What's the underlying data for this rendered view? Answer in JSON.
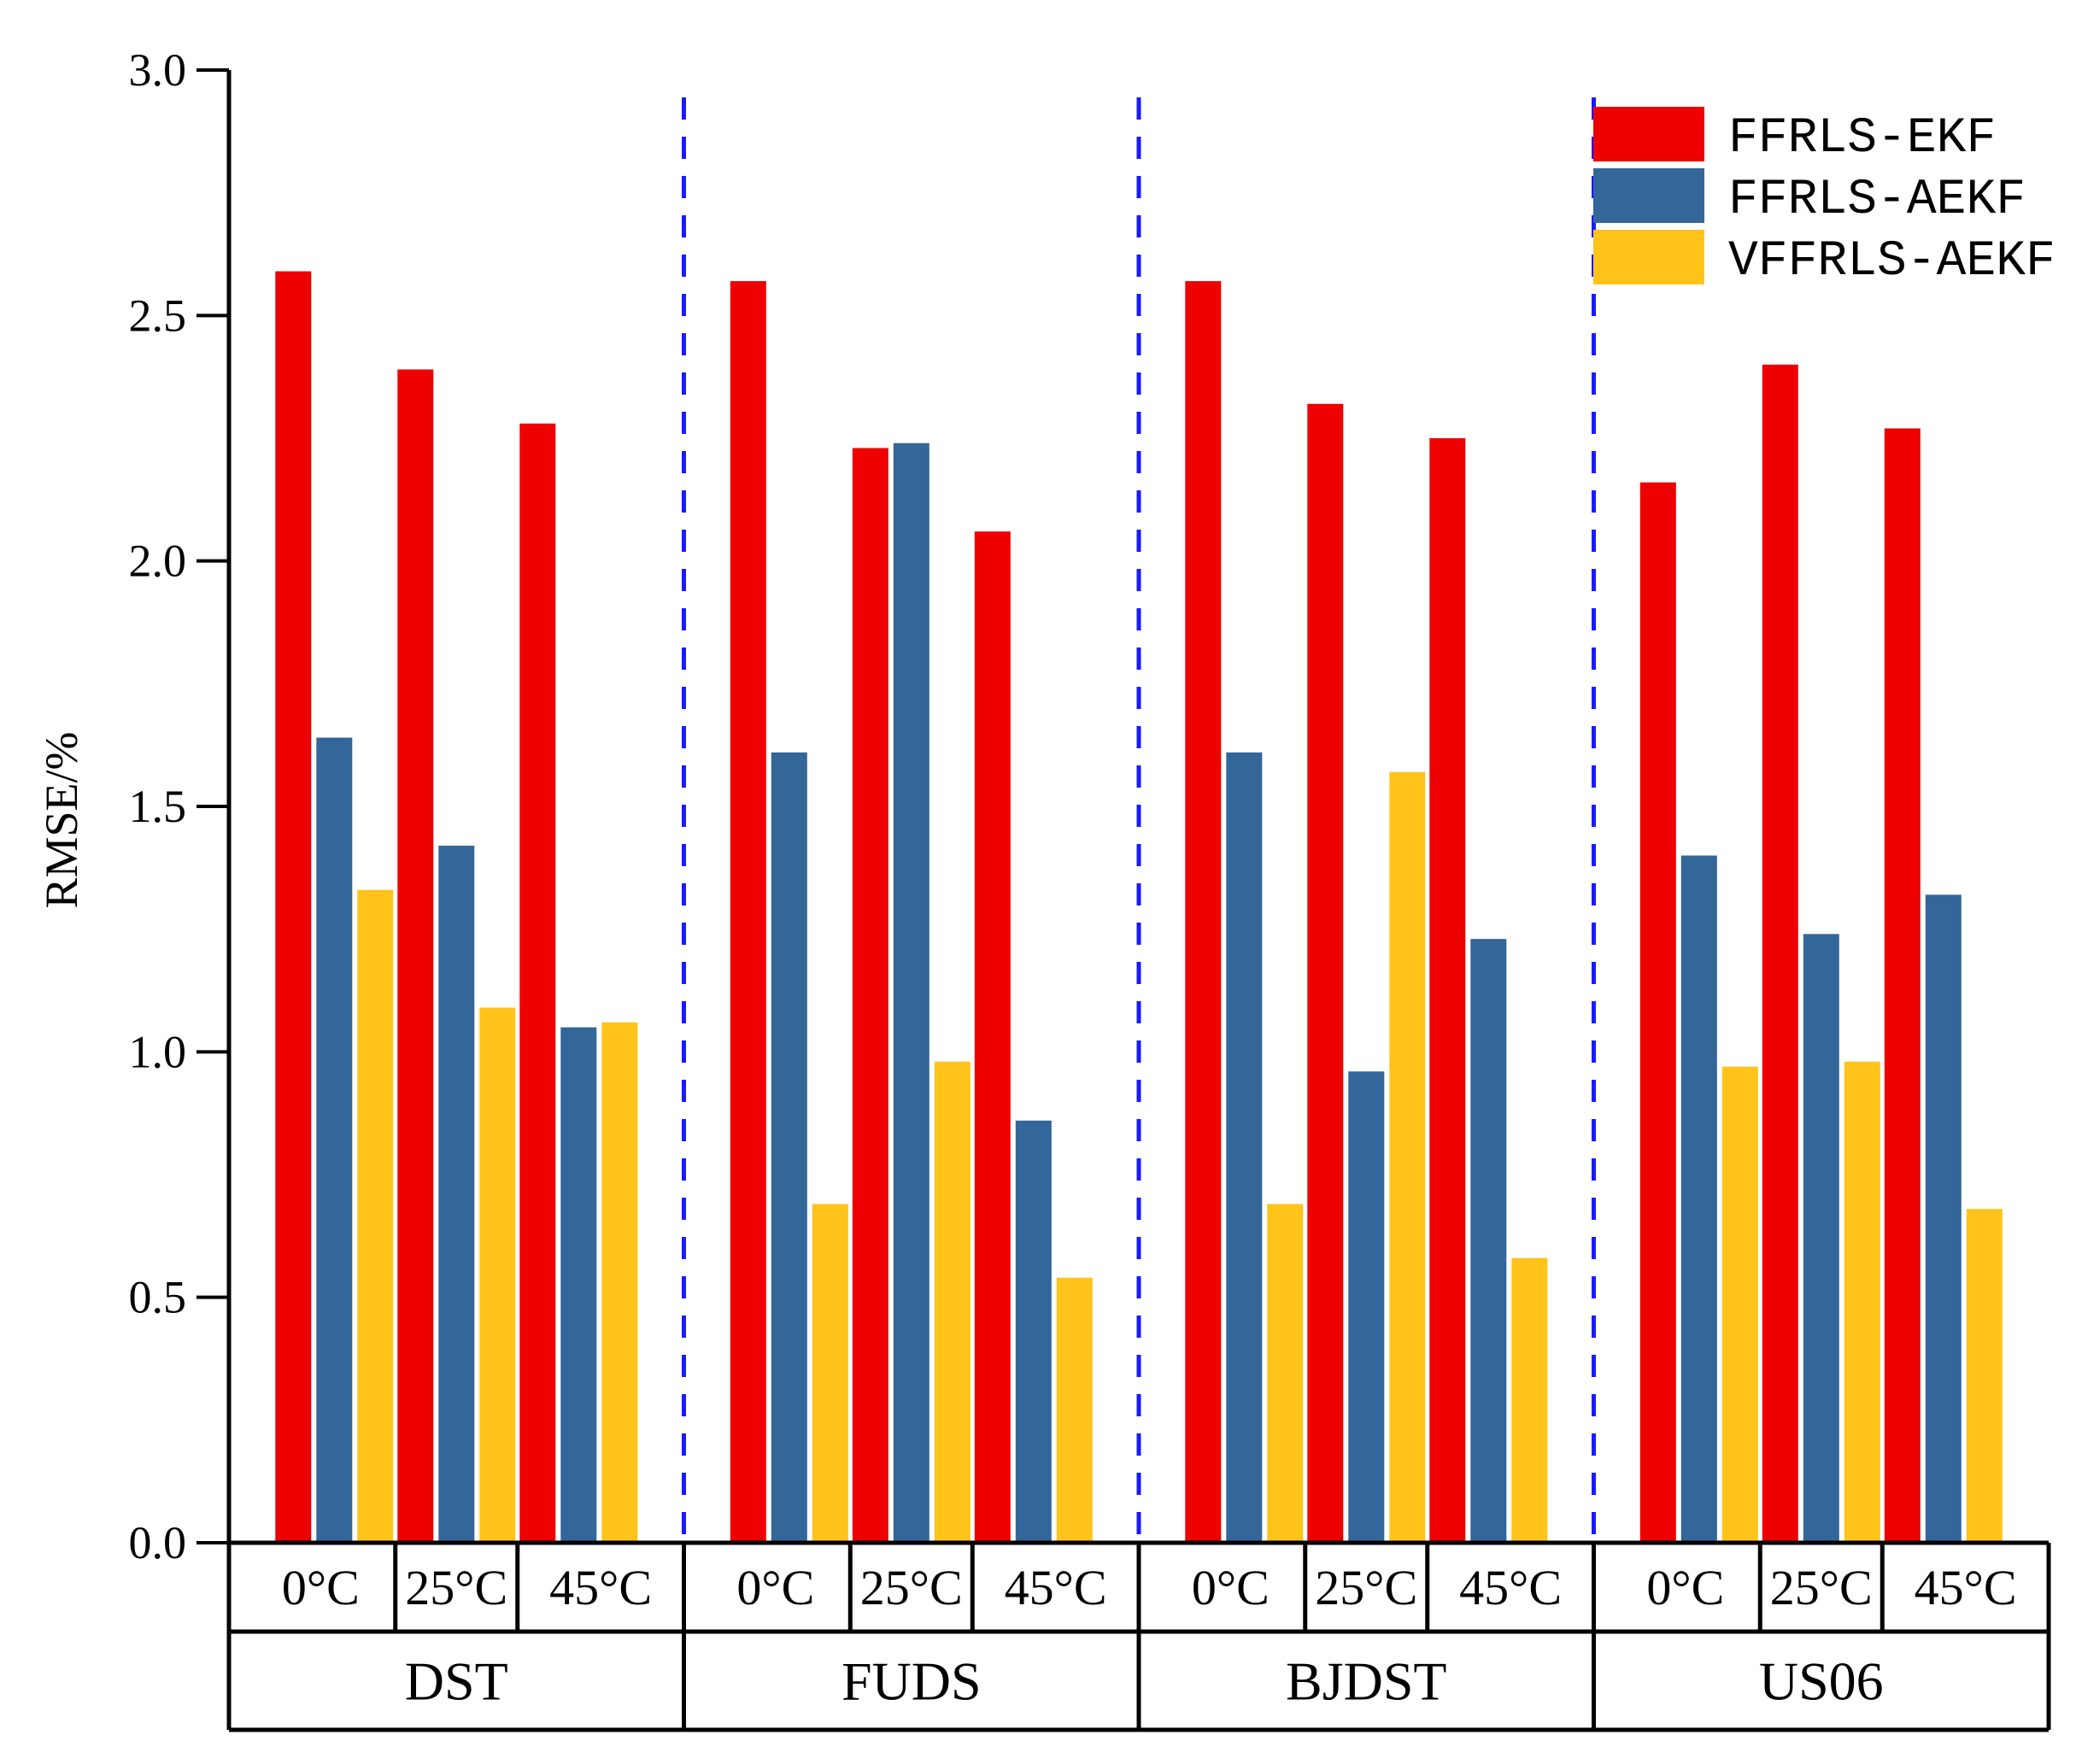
{
  "chart_data": {
    "type": "bar",
    "title": "",
    "xlabel": "",
    "ylabel": "RMSE/%",
    "ylim": [
      0,
      3.0
    ],
    "y_ticks": [
      "0.0",
      "0.5",
      "1.0",
      "1.5",
      "2.0",
      "2.5",
      "3.0"
    ],
    "grid": false,
    "legend_position": "top-right",
    "groups": [
      {
        "name": "DST",
        "temperatures": [
          "0°C",
          "25°C",
          "45°C"
        ]
      },
      {
        "name": "FUDS",
        "temperatures": [
          "0°C",
          "25°C",
          "45°C"
        ]
      },
      {
        "name": "BJDST",
        "temperatures": [
          "0°C",
          "25°C",
          "45°C"
        ]
      },
      {
        "name": "US06",
        "temperatures": [
          "0°C",
          "25°C",
          "45°C"
        ]
      }
    ],
    "series": [
      {
        "name": "FFRLS-EKF",
        "color": "#ee0000",
        "values": [
          2.59,
          2.39,
          2.28,
          2.57,
          2.23,
          2.06,
          2.57,
          2.32,
          2.25,
          2.16,
          2.4,
          2.27
        ]
      },
      {
        "name": "FFRLS-AEKF",
        "color": "#336699",
        "values": [
          1.64,
          1.42,
          1.05,
          1.61,
          2.24,
          0.86,
          1.61,
          0.96,
          1.23,
          1.4,
          1.24,
          1.32
        ]
      },
      {
        "name": "VFFRLS-AEKF",
        "color": "#ffc31a",
        "values": [
          1.33,
          1.09,
          1.06,
          0.69,
          0.98,
          0.54,
          0.69,
          1.57,
          0.58,
          0.97,
          0.98,
          0.68
        ]
      }
    ]
  }
}
